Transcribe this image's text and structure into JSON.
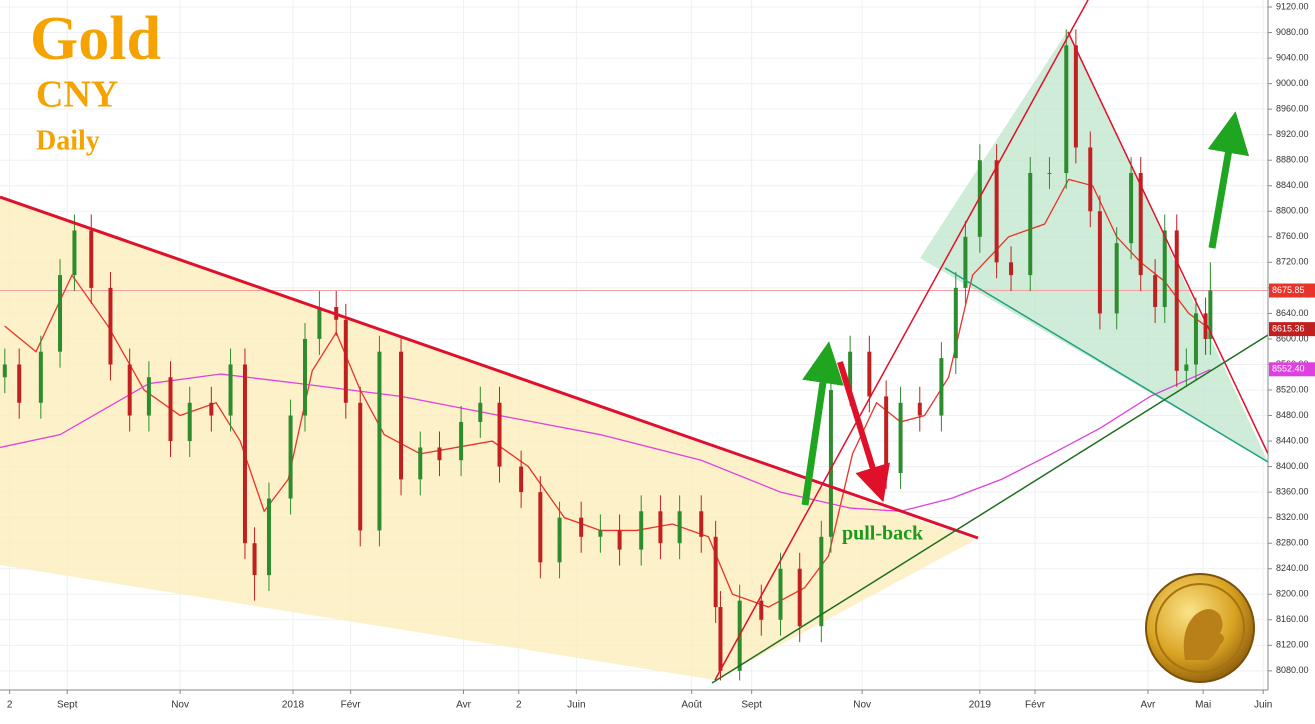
{
  "chart_data": {
    "type": "candlestick",
    "title": "Gold",
    "subtitle": "CNY",
    "timeframe": "Daily",
    "annotation": "pull-back",
    "up_color": "#2e8b2e",
    "down_color": "#c0201f",
    "xlim": [
      0,
      528
    ],
    "ylim": [
      8050,
      9131
    ],
    "xticks": [
      {
        "value": 4,
        "label": "2"
      },
      {
        "value": 28,
        "label": "Sept"
      },
      {
        "value": 75,
        "label": "Nov"
      },
      {
        "value": 122,
        "label": "2018"
      },
      {
        "value": 146,
        "label": "Févr"
      },
      {
        "value": 193,
        "label": "Avr"
      },
      {
        "value": 216,
        "label": "2"
      },
      {
        "value": 240,
        "label": "Juin"
      },
      {
        "value": 288,
        "label": "Août"
      },
      {
        "value": 313,
        "label": "Sept"
      },
      {
        "value": 359,
        "label": "Nov"
      },
      {
        "value": 408,
        "label": "2019"
      },
      {
        "value": 431,
        "label": "Févr"
      },
      {
        "value": 478,
        "label": "Avr"
      },
      {
        "value": 501,
        "label": "Mai"
      },
      {
        "value": 526,
        "label": "Juin"
      }
    ],
    "yticks": [
      {
        "value": 8080,
        "label": "8080.00"
      },
      {
        "value": 8120,
        "label": "8120.00"
      },
      {
        "value": 8160,
        "label": "8160.00"
      },
      {
        "value": 8200,
        "label": "8200.00"
      },
      {
        "value": 8240,
        "label": "8240.00"
      },
      {
        "value": 8280,
        "label": "8280.00"
      },
      {
        "value": 8320,
        "label": "8320.00"
      },
      {
        "value": 8360,
        "label": "8360.00"
      },
      {
        "value": 8400,
        "label": "8400.00"
      },
      {
        "value": 8440,
        "label": "8440.00"
      },
      {
        "value": 8480,
        "label": "8480.00"
      },
      {
        "value": 8520,
        "label": "8520.00"
      },
      {
        "value": 8560,
        "label": "8560.00"
      },
      {
        "value": 8600,
        "label": "8600.00"
      },
      {
        "value": 8640,
        "label": "8640.00"
      },
      {
        "value": 8680,
        "label": "8680.00"
      },
      {
        "value": 8720,
        "label": "8720.00"
      },
      {
        "value": 8760,
        "label": "8760.00"
      },
      {
        "value": 8800,
        "label": "8800.00"
      },
      {
        "value": 8840,
        "label": "8840.00"
      },
      {
        "value": 8880,
        "label": "8880.00"
      },
      {
        "value": 8920,
        "label": "8920.00"
      },
      {
        "value": 8960,
        "label": "8960.00"
      },
      {
        "value": 9000,
        "label": "9000.00"
      },
      {
        "value": 9040,
        "label": "9040.00"
      },
      {
        "value": 9080,
        "label": "9080.00"
      },
      {
        "value": 9120,
        "label": "9120.00"
      }
    ],
    "grid": true,
    "x": [
      2,
      8,
      17,
      25,
      31,
      38,
      46,
      54,
      62,
      71,
      79,
      88,
      96,
      102,
      106,
      112,
      121,
      127,
      133,
      140,
      144,
      150,
      158,
      167,
      175,
      183,
      192,
      200,
      208,
      217,
      225,
      233,
      242,
      250,
      258,
      267,
      275,
      283,
      292,
      298,
      300,
      308,
      317,
      325,
      333,
      342,
      346,
      354,
      362,
      369,
      375,
      383,
      392,
      398,
      402,
      408,
      415,
      421,
      429,
      437,
      444,
      448,
      454,
      458,
      465,
      471,
      475,
      481,
      485,
      490,
      494,
      498,
      502,
      504
    ],
    "open": [
      8540,
      8560,
      8500,
      8580,
      8700,
      8770,
      8680,
      8560,
      8480,
      8540,
      8440,
      8500,
      8480,
      8560,
      8280,
      8230,
      8350,
      8480,
      8600,
      8650,
      8630,
      8500,
      8300,
      8580,
      8380,
      8430,
      8410,
      8470,
      8500,
      8400,
      8360,
      8250,
      8320,
      8290,
      8300,
      8270,
      8330,
      8280,
      8330,
      8290,
      8180,
      8080,
      8190,
      8160,
      8240,
      8150,
      8290,
      8520,
      8580,
      8510,
      8390,
      8500,
      8480,
      8570,
      8680,
      8760,
      8880,
      8720,
      8700,
      8860,
      8860,
      9060,
      8900,
      8800,
      8640,
      8750,
      8860,
      8700,
      8650,
      8770,
      8550,
      8560,
      8640,
      8600
    ],
    "high": [
      8585,
      8585,
      8605,
      8725,
      8795,
      8795,
      8705,
      8585,
      8565,
      8565,
      8525,
      8525,
      8585,
      8585,
      8305,
      8375,
      8505,
      8625,
      8675,
      8675,
      8655,
      8525,
      8605,
      8605,
      8455,
      8455,
      8495,
      8525,
      8525,
      8425,
      8385,
      8345,
      8345,
      8325,
      8325,
      8355,
      8355,
      8355,
      8355,
      8315,
      8205,
      8215,
      8215,
      8265,
      8265,
      8315,
      8545,
      8605,
      8605,
      8535,
      8525,
      8525,
      8595,
      8705,
      8785,
      8905,
      8905,
      8745,
      8885,
      8885,
      9085,
      9085,
      8925,
      8825,
      8775,
      8885,
      8885,
      8725,
      8795,
      8795,
      8585,
      8665,
      8665,
      8720
    ],
    "low": [
      8515,
      8475,
      8475,
      8555,
      8675,
      8655,
      8535,
      8455,
      8455,
      8415,
      8415,
      8455,
      8455,
      8255,
      8190,
      8205,
      8325,
      8455,
      8575,
      8605,
      8475,
      8275,
      8275,
      8355,
      8355,
      8385,
      8385,
      8445,
      8375,
      8335,
      8225,
      8225,
      8265,
      8265,
      8245,
      8245,
      8255,
      8255,
      8265,
      8155,
      8065,
      8065,
      8135,
      8135,
      8125,
      8125,
      8265,
      8495,
      8485,
      8365,
      8365,
      8455,
      8455,
      8545,
      8655,
      8735,
      8695,
      8675,
      8675,
      8835,
      8835,
      8875,
      8775,
      8615,
      8615,
      8725,
      8675,
      8625,
      8625,
      8525,
      8525,
      8535,
      8575,
      8575
    ],
    "close": [
      8560,
      8500,
      8580,
      8700,
      8770,
      8680,
      8560,
      8480,
      8540,
      8440,
      8500,
      8480,
      8560,
      8280,
      8230,
      8350,
      8480,
      8600,
      8650,
      8630,
      8500,
      8300,
      8580,
      8380,
      8430,
      8410,
      8470,
      8500,
      8400,
      8360,
      8250,
      8320,
      8290,
      8300,
      8270,
      8330,
      8280,
      8330,
      8290,
      8180,
      8080,
      8190,
      8160,
      8240,
      8150,
      8290,
      8520,
      8580,
      8510,
      8390,
      8500,
      8480,
      8570,
      8680,
      8760,
      8880,
      8720,
      8700,
      8860,
      8860,
      9060,
      8900,
      8800,
      8640,
      8750,
      8860,
      8700,
      8650,
      8770,
      8550,
      8560,
      8640,
      8600,
      8676
    ],
    "moving_averages": [
      {
        "color": "#e8332a",
        "x": [
          2,
          15,
          30,
          45,
          60,
          75,
          90,
          100,
          110,
          120,
          130,
          140,
          150,
          160,
          175,
          190,
          205,
          220,
          235,
          250,
          265,
          280,
          295,
          305,
          320,
          335,
          345,
          355,
          365,
          375,
          385,
          395,
          405,
          420,
          435,
          445,
          455,
          465,
          475,
          485,
          495,
          504
        ],
        "values": [
          8620,
          8580,
          8700,
          8620,
          8520,
          8480,
          8500,
          8440,
          8330,
          8380,
          8550,
          8610,
          8520,
          8450,
          8420,
          8430,
          8440,
          8400,
          8320,
          8300,
          8300,
          8310,
          8290,
          8200,
          8180,
          8210,
          8260,
          8420,
          8500,
          8470,
          8480,
          8540,
          8700,
          8760,
          8780,
          8850,
          8840,
          8760,
          8720,
          8690,
          8640,
          8615
        ]
      },
      {
        "color": "#e040e0",
        "x": [
          0,
          25,
          62,
          92,
          125,
          167,
          208,
          250,
          292,
          325,
          354,
          375,
          396,
          417,
          438,
          458,
          479,
          504
        ],
        "values": [
          8430,
          8450,
          8530,
          8545,
          8530,
          8510,
          8480,
          8450,
          8410,
          8360,
          8335,
          8330,
          8350,
          8380,
          8420,
          8460,
          8510,
          8552
        ]
      }
    ],
    "price_labels": [
      {
        "value": 8675.85,
        "color": "#e8332a",
        "line": true
      },
      8615.36,
      {
        "value": 8552.4,
        "label": "8552.40",
        "color": "#e040e0"
      }
    ]
  }
}
